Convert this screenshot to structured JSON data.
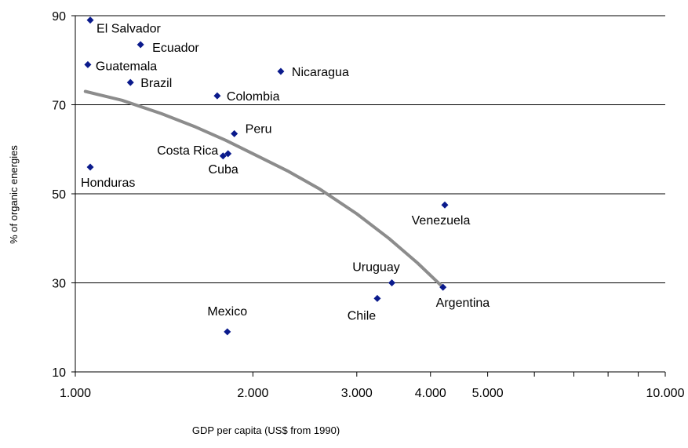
{
  "chart_data": {
    "type": "scatter",
    "xlabel": "GDP per capita (US$ from 1990)",
    "ylabel": "% of organic energies",
    "x_scale": "log",
    "xlim": [
      1000,
      10000
    ],
    "ylim": [
      10,
      90
    ],
    "x_ticks": [
      {
        "value": 1000,
        "label": "1.000"
      },
      {
        "value": 2000,
        "label": "2.000"
      },
      {
        "value": 3000,
        "label": "3.000"
      },
      {
        "value": 4000,
        "label": "4.000"
      },
      {
        "value": 5000,
        "label": "5.000"
      },
      {
        "value": 10000,
        "label": "10.000"
      }
    ],
    "x_minor_ticks": [
      6000,
      7000,
      8000,
      9000
    ],
    "y_ticks": [
      {
        "value": 10,
        "label": "10"
      },
      {
        "value": 30,
        "label": "30"
      },
      {
        "value": 50,
        "label": "50"
      },
      {
        "value": 70,
        "label": "70"
      },
      {
        "value": 90,
        "label": "90"
      }
    ],
    "grid": "horizontal",
    "legend": "none",
    "marker_color": "#0a1a8c",
    "trend_color": "#8c8c8c",
    "points": [
      {
        "label": "El Salvador",
        "x": 1060,
        "y": 89
      },
      {
        "label": "Ecuador",
        "x": 1290,
        "y": 83.5
      },
      {
        "label": "Guatemala",
        "x": 1050,
        "y": 79
      },
      {
        "label": "Brazil",
        "x": 1240,
        "y": 75
      },
      {
        "label": "Nicaragua",
        "x": 2230,
        "y": 77.5
      },
      {
        "label": "Colombia",
        "x": 1740,
        "y": 72
      },
      {
        "label": "Peru",
        "x": 1860,
        "y": 63.5
      },
      {
        "label": "Costa Rica",
        "x": 1780,
        "y": 58.5
      },
      {
        "label": "Cuba",
        "x": 1815,
        "y": 59
      },
      {
        "label": "Honduras",
        "x": 1060,
        "y": 56
      },
      {
        "label": "Venezuela",
        "x": 4230,
        "y": 47.5
      },
      {
        "label": "Uruguay",
        "x": 3440,
        "y": 30
      },
      {
        "label": "Argentina",
        "x": 4200,
        "y": 29
      },
      {
        "label": "Chile",
        "x": 3250,
        "y": 26.5
      },
      {
        "label": "Mexico",
        "x": 1810,
        "y": 19
      }
    ],
    "trend_line": {
      "type": "fitted curve",
      "points": [
        {
          "x": 1040,
          "y": 73
        },
        {
          "x": 1200,
          "y": 71
        },
        {
          "x": 1400,
          "y": 68
        },
        {
          "x": 1600,
          "y": 65
        },
        {
          "x": 1800,
          "y": 62
        },
        {
          "x": 2000,
          "y": 59
        },
        {
          "x": 2300,
          "y": 55
        },
        {
          "x": 2600,
          "y": 51
        },
        {
          "x": 3000,
          "y": 45.5
        },
        {
          "x": 3400,
          "y": 40
        },
        {
          "x": 3800,
          "y": 34.5
        },
        {
          "x": 4200,
          "y": 29
        }
      ]
    }
  }
}
